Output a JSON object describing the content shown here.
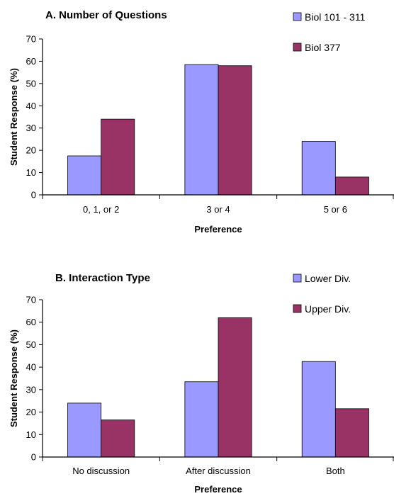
{
  "chart_data": [
    {
      "type": "bar",
      "title": "A. Number of Questions",
      "xlabel": "Preference",
      "ylabel": "Student Response (%)",
      "ylim": [
        0,
        70
      ],
      "yticks": [
        0,
        10,
        20,
        30,
        40,
        50,
        60,
        70
      ],
      "categories": [
        "0, 1, or 2",
        "3 or 4",
        "5 or 6"
      ],
      "series": [
        {
          "name": "Biol 101 - 311",
          "color": "#9999FF",
          "values": [
            17.5,
            58.5,
            24
          ]
        },
        {
          "name": "Biol 377",
          "color": "#993366",
          "values": [
            34,
            58,
            8
          ]
        }
      ],
      "legend": "top-right"
    },
    {
      "type": "bar",
      "title": "B. Interaction Type",
      "xlabel": "Preference",
      "ylabel": "Student Response (%)",
      "ylim": [
        0,
        70
      ],
      "yticks": [
        0,
        10,
        20,
        30,
        40,
        50,
        60,
        70
      ],
      "categories": [
        "No discussion",
        "After discussion",
        "Both"
      ],
      "series": [
        {
          "name": "Lower Div.",
          "color": "#9999FF",
          "values": [
            24,
            33.5,
            42.5
          ]
        },
        {
          "name": "Upper Div.",
          "color": "#993366",
          "values": [
            16.5,
            62,
            21.5
          ]
        }
      ],
      "legend": "top-right"
    }
  ]
}
